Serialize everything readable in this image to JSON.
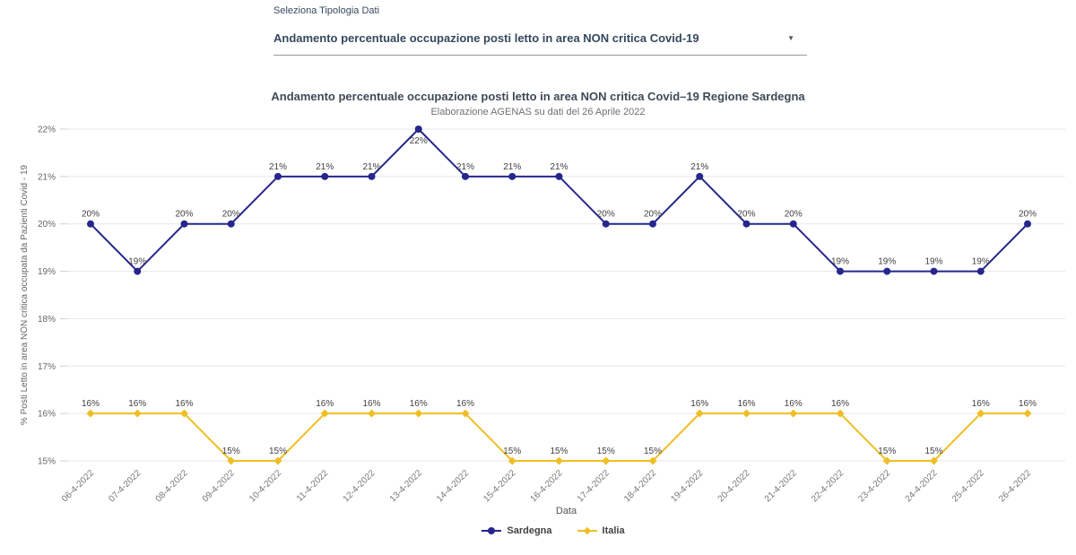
{
  "controls": {
    "label": "Seleziona Tipologia Dati",
    "selected": "Andamento percentuale occupazione posti letto in area NON critica Covid-19"
  },
  "chart": {
    "title": "Andamento percentuale occupazione posti letto in area NON critica Covid–19 Regione Sardegna",
    "subtitle": "Elaborazione AGENAS su dati del 26 Aprile 2022"
  },
  "chart_data": {
    "type": "line",
    "categories": [
      "06-4-2022",
      "07-4-2022",
      "08-4-2022",
      "09-4-2022",
      "10-4-2022",
      "11-4-2022",
      "12-4-2022",
      "13-4-2022",
      "14-4-2022",
      "15-4-2022",
      "16-4-2022",
      "17-4-2022",
      "18-4-2022",
      "19-4-2022",
      "20-4-2022",
      "21-4-2022",
      "22-4-2022",
      "23-4-2022",
      "24-4-2022",
      "25-4-2022",
      "26-4-2022"
    ],
    "series": [
      {
        "name": "Sardegna",
        "color": "#26268D",
        "marker": "circle",
        "values": [
          20,
          19,
          20,
          20,
          21,
          21,
          21,
          22,
          21,
          21,
          21,
          20,
          20,
          21,
          20,
          20,
          19,
          19,
          19,
          19,
          20
        ]
      },
      {
        "name": "Italia",
        "color": "#EFBE24",
        "marker": "diamond",
        "values": [
          16,
          16,
          16,
          15,
          15,
          16,
          16,
          16,
          16,
          15,
          15,
          15,
          15,
          16,
          16,
          16,
          16,
          15,
          15,
          16,
          16
        ]
      }
    ],
    "xlabel": "Data",
    "ylabel": "% Posti Letto in area NON critica occupata da Pazienti Covid - 19",
    "ylim": [
      15,
      22
    ],
    "ytick_step": 1,
    "ytick_suffix": "%",
    "grid": "horizontal",
    "legend_position": "bottom",
    "data_labels": true
  },
  "colors": {
    "sardegna": "#26268D",
    "italia": "#EFBE24",
    "gridline": "#E7E7E7",
    "tick_text": "#666666",
    "xlabel_text": "#777777",
    "data_label_text": "#404040",
    "title_text": "#3E4A57"
  }
}
